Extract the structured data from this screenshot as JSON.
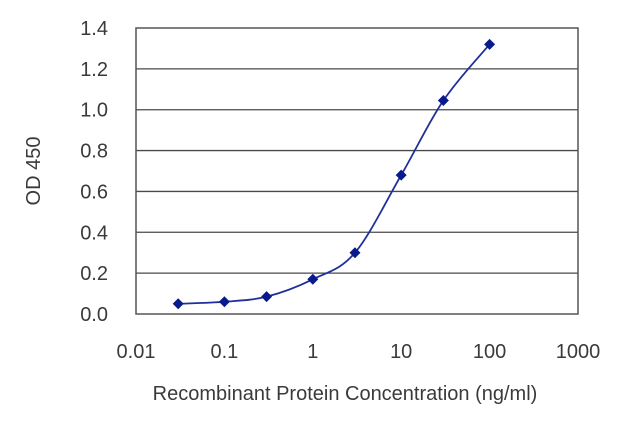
{
  "chart_data": {
    "type": "line",
    "xlabel": "Recombinant Protein Concentration (ng/ml)",
    "ylabel": "OD 450",
    "x_scale": "log",
    "xlim": [
      0.01,
      1000
    ],
    "ylim": [
      0.0,
      1.4
    ],
    "x_ticks": [
      "0.01",
      "0.1",
      "1",
      "10",
      "100",
      "1000"
    ],
    "y_ticks": [
      "0.0",
      "0.2",
      "0.4",
      "0.6",
      "0.8",
      "1.0",
      "1.2",
      "1.4"
    ],
    "grid": "horizontal",
    "series_color": "#1f2f9c",
    "marker_color": "#0a1a8c",
    "series": [
      {
        "x": [
          0.03,
          0.1,
          0.3,
          1,
          3,
          10,
          30,
          100
        ],
        "y": [
          0.05,
          0.06,
          0.085,
          0.17,
          0.3,
          0.68,
          1.045,
          1.32
        ]
      }
    ]
  }
}
